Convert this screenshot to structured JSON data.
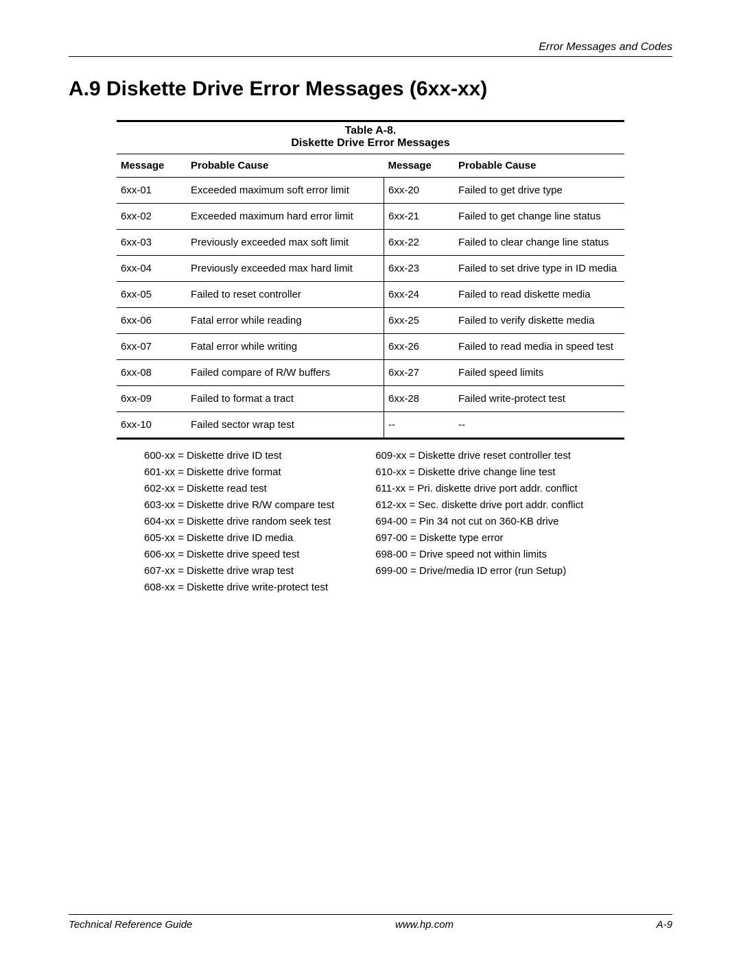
{
  "header": {
    "right_text": "Error Messages and Codes"
  },
  "section": {
    "title": "A.9 Diskette Drive Error Messages (6xx-xx)"
  },
  "table": {
    "number": "Table A-8.",
    "caption": "Diskette Drive Error Messages",
    "columns": {
      "msg_left": "Message",
      "cause_left": "Probable Cause",
      "msg_right": "Message",
      "cause_right": "Probable Cause"
    },
    "rows": [
      {
        "ml": "6xx-01",
        "cl": "Exceeded maximum soft error limit",
        "mr": "6xx-20",
        "cr": "Failed to get drive type"
      },
      {
        "ml": "6xx-02",
        "cl": "Exceeded maximum hard error limit",
        "mr": "6xx-21",
        "cr": "Failed to get change line status"
      },
      {
        "ml": "6xx-03",
        "cl": "Previously exceeded max soft limit",
        "mr": "6xx-22",
        "cr": "Failed to clear change line status"
      },
      {
        "ml": "6xx-04",
        "cl": "Previously exceeded max hard limit",
        "mr": "6xx-23",
        "cr": "Failed to set drive type in ID media"
      },
      {
        "ml": "6xx-05",
        "cl": "Failed to reset controller",
        "mr": "6xx-24",
        "cr": "Failed to read diskette media"
      },
      {
        "ml": "6xx-06",
        "cl": "Fatal error while reading",
        "mr": "6xx-25",
        "cr": "Failed to verify diskette media"
      },
      {
        "ml": "6xx-07",
        "cl": "Fatal error while writing",
        "mr": "6xx-26",
        "cr": "Failed to read media in speed test"
      },
      {
        "ml": "6xx-08",
        "cl": "Failed compare of R/W buffers",
        "mr": "6xx-27",
        "cr": "Failed speed limits"
      },
      {
        "ml": "6xx-09",
        "cl": "Failed to format a tract",
        "mr": "6xx-28",
        "cr": "Failed write-protect test"
      },
      {
        "ml": "6xx-10",
        "cl": "Failed sector wrap test",
        "mr": "--",
        "cr": "--"
      }
    ]
  },
  "code_lists": {
    "left": [
      "600-xx = Diskette drive ID test",
      "601-xx = Diskette drive format",
      "602-xx = Diskette read test",
      "603-xx = Diskette drive R/W compare test",
      "604-xx = Diskette drive random seek test",
      "605-xx = Diskette drive ID media",
      "606-xx = Diskette drive speed test",
      "607-xx = Diskette drive wrap test",
      "608-xx = Diskette drive write-protect test"
    ],
    "right": [
      "609-xx = Diskette drive reset controller test",
      "610-xx = Diskette drive change line test",
      "611-xx = Pri. diskette drive port addr. conflict",
      "612-xx = Sec. diskette drive port addr. conflict",
      "694-00 = Pin 34 not cut on 360-KB drive",
      "697-00 = Diskette type error",
      "698-00 = Drive speed not within limits",
      "699-00 = Drive/media ID error (run Setup)"
    ]
  },
  "footer": {
    "left": "Technical Reference Guide",
    "center": "www.hp.com",
    "right": "A-9"
  }
}
